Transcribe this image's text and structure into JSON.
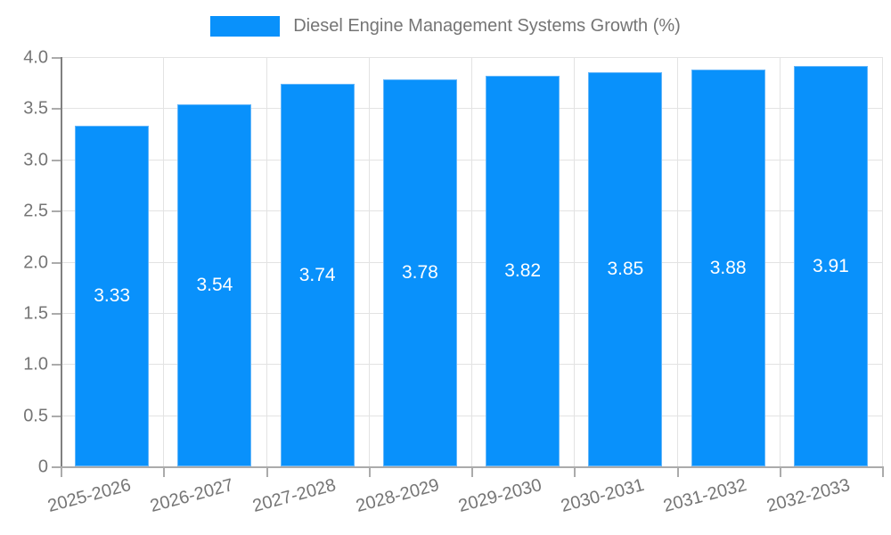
{
  "chart_data": {
    "type": "bar",
    "title": "",
    "legend": "Diesel Engine Management Systems Growth (%)",
    "legend_position": "top",
    "categories": [
      "2025-2026",
      "2026-2027",
      "2027-2028",
      "2028-2029",
      "2029-2030",
      "2030-2031",
      "2031-2032",
      "2032-2033"
    ],
    "values": [
      3.33,
      3.54,
      3.74,
      3.78,
      3.82,
      3.85,
      3.88,
      3.91
    ],
    "value_labels": [
      "3.33",
      "3.54",
      "3.74",
      "3.78",
      "3.82",
      "3.85",
      "3.88",
      "3.91"
    ],
    "xlabel": "",
    "ylabel": "",
    "ylim": [
      0,
      4.0
    ],
    "yticks": [
      "0",
      "0.5",
      "1.0",
      "1.5",
      "2.0",
      "2.5",
      "3.0",
      "3.5",
      "4.0"
    ],
    "grid": true
  },
  "colors": {
    "bar": "#0991fb",
    "bar_border": "#64b6fa",
    "grid": "#e3e3e3",
    "axis_y": "#808080",
    "axis_x": "#ababab",
    "tick": "#ababab",
    "text": "#757575",
    "bar_label_text": "#ffffff"
  }
}
